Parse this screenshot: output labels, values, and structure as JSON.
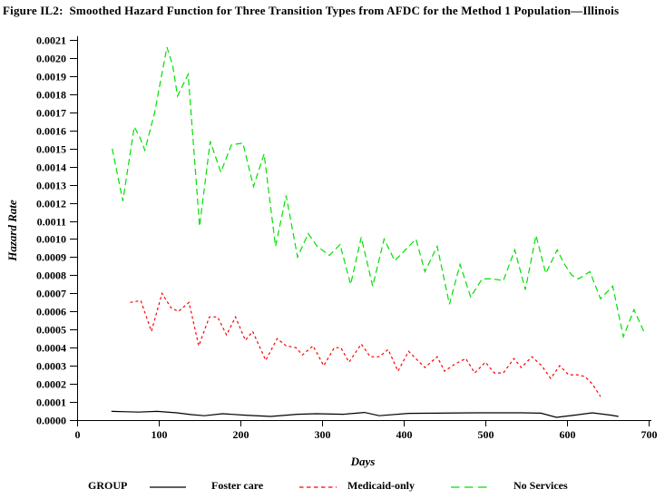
{
  "title": "Figure IL2:  Smoothed Hazard Function for Three Transition Types from AFDC for the Method 1 Population—Illinois",
  "axes": {
    "x_label": "Days",
    "y_label": "Hazard Rate"
  },
  "legend": {
    "group_label": "GROUP",
    "items": [
      {
        "label": "Foster care",
        "color": "#000000",
        "dash": "solid"
      },
      {
        "label": "Medicaid-only",
        "color": "#ff0000",
        "dash": "short-dash"
      },
      {
        "label": "No Services",
        "color": "#00e000",
        "dash": "long-dash"
      }
    ]
  },
  "chart_data": {
    "type": "line",
    "title": "Figure IL2:  Smoothed Hazard Function for Three Transition Types from AFDC for the Method 1 Population—Illinois",
    "xlabel": "Days",
    "ylabel": "Hazard Rate",
    "xlim": [
      0,
      700
    ],
    "ylim": [
      0,
      0.0021
    ],
    "grid": false,
    "legend_position": "bottom",
    "x_ticks": [
      0,
      100,
      200,
      300,
      400,
      500,
      600,
      700
    ],
    "y_ticks": [
      "0.0000",
      "0.0001",
      "0.0002",
      "0.0003",
      "0.0004",
      "0.0005",
      "0.0006",
      "0.0007",
      "0.0008",
      "0.0009",
      "0.0010",
      "0.0011",
      "0.0012",
      "0.0013",
      "0.0014",
      "0.0015",
      "0.0016",
      "0.0017",
      "0.0018",
      "0.0019",
      "0.0020",
      "0.0021"
    ],
    "series": [
      {
        "name": "Foster care",
        "color": "#000000",
        "dash": "solid",
        "points": [
          [
            42,
            4.8e-05
          ],
          [
            60,
            4.6e-05
          ],
          [
            75,
            4.4e-05
          ],
          [
            98,
            4.8e-05
          ],
          [
            122,
            4e-05
          ],
          [
            140,
            3e-05
          ],
          [
            156,
            2.4e-05
          ],
          [
            178,
            3.5e-05
          ],
          [
            206,
            2.7e-05
          ],
          [
            237,
            2e-05
          ],
          [
            270,
            3.2e-05
          ],
          [
            293,
            3.5e-05
          ],
          [
            326,
            3.2e-05
          ],
          [
            352,
            4.2e-05
          ],
          [
            370,
            2.4e-05
          ],
          [
            406,
            3.7e-05
          ],
          [
            440,
            3.8e-05
          ],
          [
            490,
            4e-05
          ],
          [
            545,
            4e-05
          ],
          [
            568,
            3.8e-05
          ],
          [
            587,
            1.5e-05
          ],
          [
            609,
            2.7e-05
          ],
          [
            631,
            4e-05
          ],
          [
            654,
            2.7e-05
          ],
          [
            663,
            2e-05
          ]
        ]
      },
      {
        "name": "Medicaid-only",
        "color": "#ff0000",
        "dash": "short-dash",
        "points": [
          [
            65,
            0.00065
          ],
          [
            78,
            0.00066
          ],
          [
            91,
            0.00049
          ],
          [
            104,
            0.0007
          ],
          [
            115,
            0.00062
          ],
          [
            124,
            0.0006
          ],
          [
            137,
            0.00065
          ],
          [
            149,
            0.00041
          ],
          [
            162,
            0.00057
          ],
          [
            172,
            0.00057
          ],
          [
            183,
            0.00047
          ],
          [
            194,
            0.00057
          ],
          [
            206,
            0.00044
          ],
          [
            215,
            0.00049
          ],
          [
            231,
            0.00033
          ],
          [
            245,
            0.00045
          ],
          [
            256,
            0.00041
          ],
          [
            268,
            0.0004
          ],
          [
            276,
            0.00036
          ],
          [
            289,
            0.00041
          ],
          [
            302,
            0.0003
          ],
          [
            315,
            0.0004
          ],
          [
            323,
            0.0004
          ],
          [
            333,
            0.00032
          ],
          [
            348,
            0.00042
          ],
          [
            359,
            0.00035
          ],
          [
            370,
            0.00035
          ],
          [
            381,
            0.00039
          ],
          [
            393,
            0.00027
          ],
          [
            406,
            0.00038
          ],
          [
            417,
            0.00033
          ],
          [
            426,
            0.00029
          ],
          [
            441,
            0.00035
          ],
          [
            450,
            0.00027
          ],
          [
            463,
            0.00031
          ],
          [
            476,
            0.00034
          ],
          [
            487,
            0.00026
          ],
          [
            500,
            0.00032
          ],
          [
            511,
            0.00026
          ],
          [
            522,
            0.00026
          ],
          [
            535,
            0.00034
          ],
          [
            544,
            0.00029
          ],
          [
            557,
            0.00035
          ],
          [
            569,
            0.0003
          ],
          [
            580,
            0.00023
          ],
          [
            591,
            0.0003
          ],
          [
            602,
            0.00025
          ],
          [
            613,
            0.00025
          ],
          [
            622,
            0.00024
          ],
          [
            631,
            0.0002
          ],
          [
            641,
            0.00013
          ]
        ]
      },
      {
        "name": "No Services",
        "color": "#00e000",
        "dash": "long-dash",
        "points": [
          [
            43,
            0.0015
          ],
          [
            56,
            0.00121
          ],
          [
            70,
            0.00162
          ],
          [
            77,
            0.00156
          ],
          [
            83,
            0.00149
          ],
          [
            95,
            0.0017
          ],
          [
            110,
            0.00206
          ],
          [
            117,
            0.00196
          ],
          [
            123,
            0.00179
          ],
          [
            136,
            0.00191
          ],
          [
            150,
            0.00107
          ],
          [
            163,
            0.00154
          ],
          [
            176,
            0.00137
          ],
          [
            189,
            0.00152
          ],
          [
            203,
            0.00153
          ],
          [
            216,
            0.00129
          ],
          [
            229,
            0.00147
          ],
          [
            243,
            0.00096
          ],
          [
            256,
            0.00124
          ],
          [
            270,
            0.0009
          ],
          [
            283,
            0.00103
          ],
          [
            294,
            0.00096
          ],
          [
            309,
            0.00091
          ],
          [
            322,
            0.00097
          ],
          [
            335,
            0.00075
          ],
          [
            348,
            0.00101
          ],
          [
            362,
            0.00074
          ],
          [
            376,
            0.001
          ],
          [
            389,
            0.00088
          ],
          [
            402,
            0.00094
          ],
          [
            415,
            0.001
          ],
          [
            426,
            0.00082
          ],
          [
            441,
            0.00096
          ],
          [
            456,
            0.00064
          ],
          [
            469,
            0.00086
          ],
          [
            482,
            0.00068
          ],
          [
            496,
            0.00078
          ],
          [
            509,
            0.00078
          ],
          [
            522,
            0.00077
          ],
          [
            536,
            0.00094
          ],
          [
            549,
            0.00072
          ],
          [
            562,
            0.00102
          ],
          [
            574,
            0.00081
          ],
          [
            588,
            0.00094
          ],
          [
            597,
            0.00086
          ],
          [
            606,
            0.0008
          ],
          [
            614,
            0.00078
          ],
          [
            628,
            0.00082
          ],
          [
            641,
            0.00067
          ],
          [
            656,
            0.00074
          ],
          [
            669,
            0.00046
          ],
          [
            682,
            0.00061
          ],
          [
            694,
            0.00049
          ]
        ]
      }
    ]
  }
}
